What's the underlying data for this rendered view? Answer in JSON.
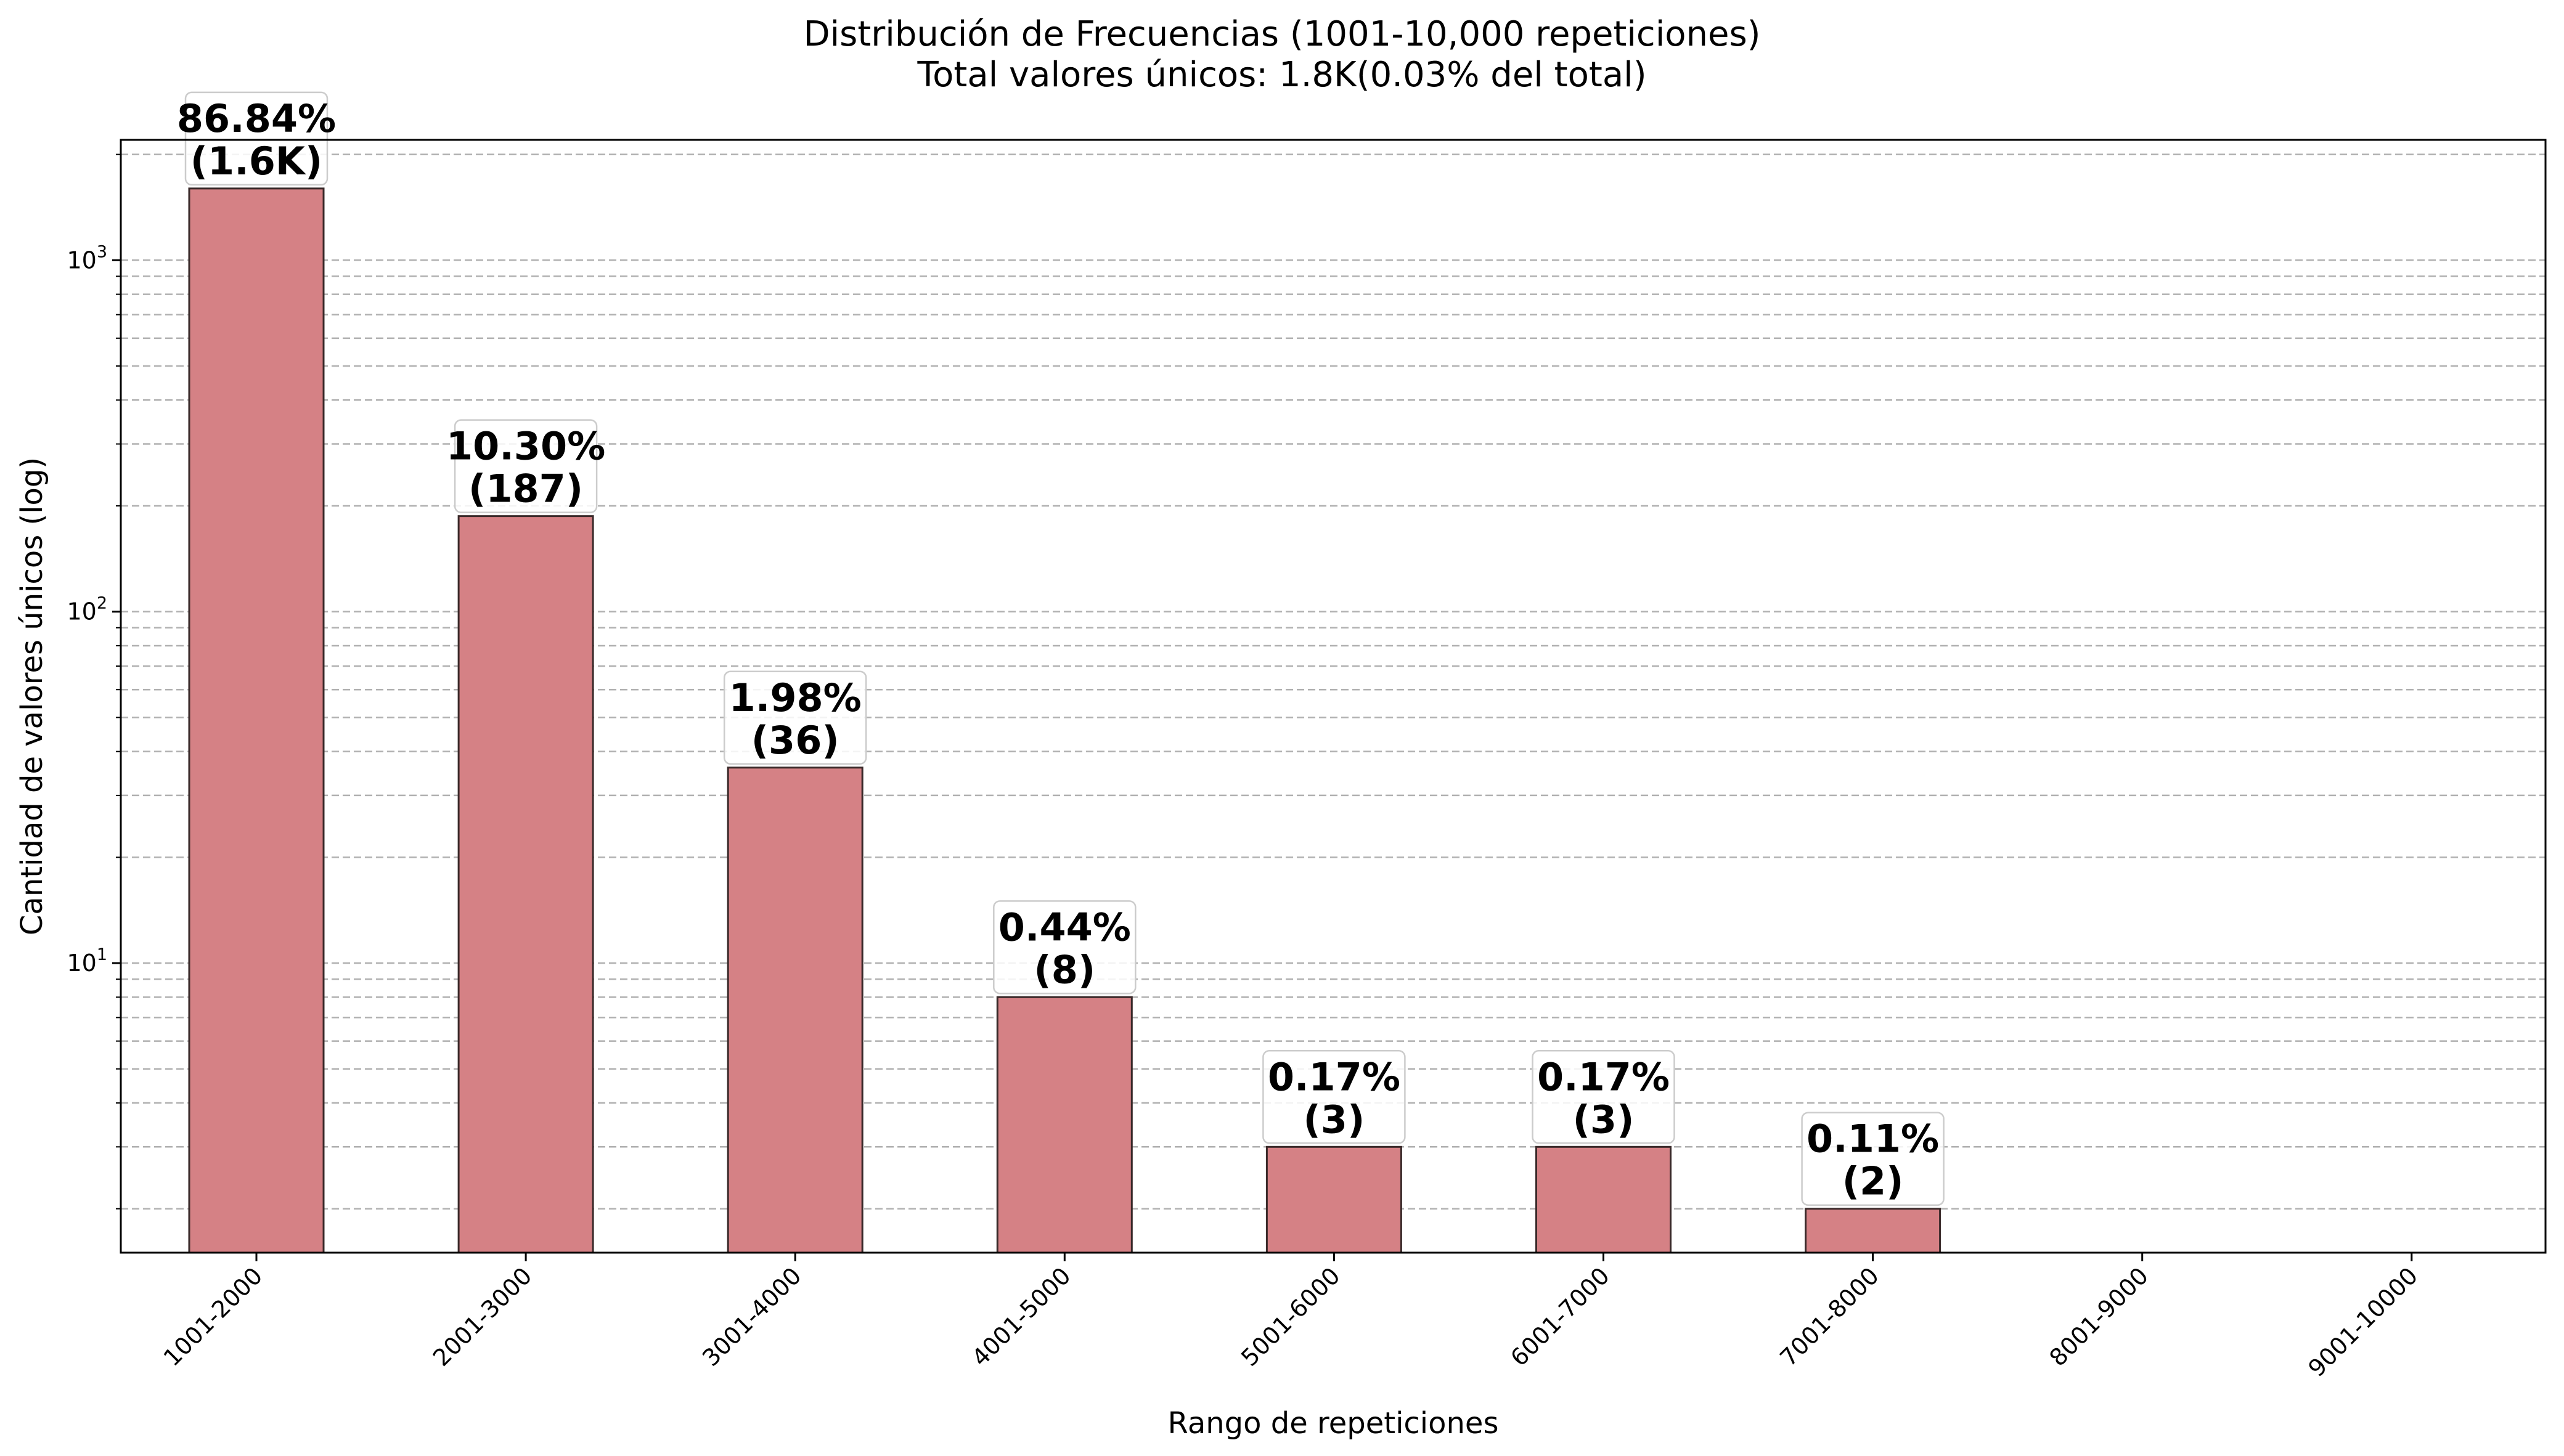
{
  "chart_data": {
    "type": "bar",
    "title": "Distribución de Frecuencias (1001-10,000 repeticiones)",
    "subtitle": "Total valores únicos: 1.8K(0.03% del total)",
    "xlabel": "Rango de repeticiones",
    "ylabel": "Cantidad de valores únicos (log)",
    "yscale": "log",
    "ylim": [
      1.5,
      2200
    ],
    "grid": true,
    "categories": [
      "1001-2000",
      "2001-3000",
      "3001-4000",
      "4001-5000",
      "5001-6000",
      "6001-7000",
      "7001-8000",
      "8001-9000",
      "9001-10000"
    ],
    "values": [
      1600,
      187,
      36,
      8,
      3,
      3,
      2,
      0,
      0
    ],
    "bar_labels": [
      {
        "percent": "86.84%",
        "count": "(1.6K)"
      },
      {
        "percent": "10.30%",
        "count": "(187)"
      },
      {
        "percent": "1.98%",
        "count": "(36)"
      },
      {
        "percent": "0.44%",
        "count": "(8)"
      },
      {
        "percent": "0.17%",
        "count": "(3)"
      },
      {
        "percent": "0.17%",
        "count": "(3)"
      },
      {
        "percent": "0.11%",
        "count": "(2)"
      },
      null,
      null
    ],
    "y_ticks": [
      {
        "base": "10",
        "exp": "1",
        "value": 10
      },
      {
        "base": "10",
        "exp": "2",
        "value": 100
      },
      {
        "base": "10",
        "exp": "3",
        "value": 1000
      }
    ],
    "colors": {
      "bar": "#d58185",
      "bar_edge": "#3a2a2a",
      "grid": "#b0b0b0"
    }
  }
}
